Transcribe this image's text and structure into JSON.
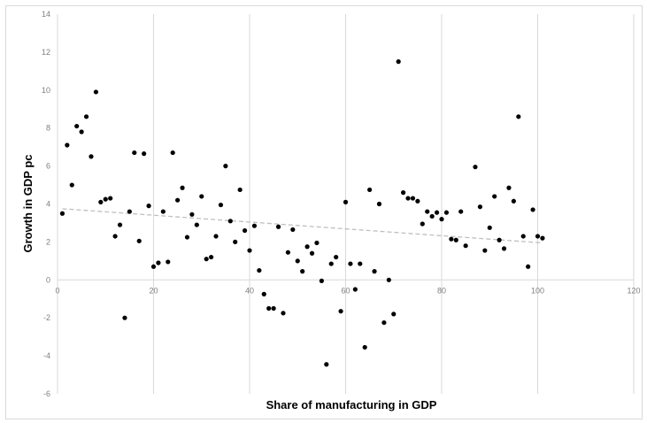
{
  "chart_data": {
    "type": "scatter",
    "title": "",
    "xlabel": "Share of manufacturing in GDP",
    "ylabel": "Growth in GDP pc",
    "xlim": [
      0,
      120
    ],
    "ylim": [
      -6,
      14
    ],
    "xticks": [
      0,
      20,
      40,
      60,
      80,
      100,
      120
    ],
    "yticks": [
      -6,
      -4,
      -2,
      0,
      2,
      4,
      6,
      8,
      10,
      12,
      14
    ],
    "grid": {
      "vertical": true,
      "horizontal": false
    },
    "trendline": {
      "type": "linear",
      "x": [
        1,
        101
      ],
      "y": [
        3.75,
        1.95
      ],
      "style": "dashed"
    },
    "series": [
      {
        "points": [
          [
            1,
            3.5
          ],
          [
            2,
            7.1
          ],
          [
            3,
            5.0
          ],
          [
            4,
            8.1
          ],
          [
            5,
            7.8
          ],
          [
            6,
            8.6
          ],
          [
            7,
            6.5
          ],
          [
            8,
            9.9
          ],
          [
            9,
            4.1
          ],
          [
            10,
            4.25
          ],
          [
            11,
            4.3
          ],
          [
            12,
            2.3
          ],
          [
            13,
            2.9
          ],
          [
            14,
            -2.0
          ],
          [
            15,
            3.6
          ],
          [
            16,
            6.7
          ],
          [
            17,
            2.05
          ],
          [
            18,
            6.65
          ],
          [
            19,
            3.9
          ],
          [
            20,
            0.7
          ],
          [
            21,
            0.9
          ],
          [
            22,
            3.6
          ],
          [
            23,
            0.95
          ],
          [
            24,
            6.7
          ],
          [
            25,
            4.2
          ],
          [
            26,
            4.85
          ],
          [
            27,
            2.25
          ],
          [
            28,
            3.45
          ],
          [
            29,
            2.9
          ],
          [
            30,
            4.4
          ],
          [
            31,
            1.1
          ],
          [
            32,
            1.2
          ],
          [
            33,
            2.3
          ],
          [
            34,
            3.95
          ],
          [
            35,
            6.0
          ],
          [
            36,
            3.1
          ],
          [
            37,
            2.0
          ],
          [
            38,
            4.75
          ],
          [
            39,
            2.6
          ],
          [
            40,
            1.55
          ],
          [
            41,
            2.85
          ],
          [
            42,
            0.5
          ],
          [
            43,
            -0.75
          ],
          [
            44,
            -1.5
          ],
          [
            45,
            -1.5
          ],
          [
            46,
            2.8
          ],
          [
            47,
            -1.75
          ],
          [
            48,
            1.45
          ],
          [
            49,
            2.65
          ],
          [
            50,
            1.0
          ],
          [
            51,
            0.45
          ],
          [
            52,
            1.75
          ],
          [
            53,
            1.4
          ],
          [
            54,
            1.95
          ],
          [
            55,
            -0.05
          ],
          [
            56,
            -4.45
          ],
          [
            57,
            0.85
          ],
          [
            58,
            1.2
          ],
          [
            59,
            -1.65
          ],
          [
            60,
            4.1
          ],
          [
            61,
            0.85
          ],
          [
            62,
            -0.5
          ],
          [
            63,
            0.85
          ],
          [
            64,
            -3.55
          ],
          [
            65,
            4.75
          ],
          [
            66,
            0.45
          ],
          [
            67,
            4.0
          ],
          [
            68,
            -2.25
          ],
          [
            69,
            0.0
          ],
          [
            70,
            -1.8
          ],
          [
            71,
            11.5
          ],
          [
            72,
            4.6
          ],
          [
            73,
            4.3
          ],
          [
            74,
            4.3
          ],
          [
            75,
            4.15
          ],
          [
            76,
            2.95
          ],
          [
            77,
            3.6
          ],
          [
            78,
            3.35
          ],
          [
            79,
            3.55
          ],
          [
            80,
            3.2
          ],
          [
            81,
            3.55
          ],
          [
            82,
            2.15
          ],
          [
            83,
            2.1
          ],
          [
            84,
            3.6
          ],
          [
            85,
            1.8
          ],
          [
            87,
            5.95
          ],
          [
            88,
            3.85
          ],
          [
            89,
            1.55
          ],
          [
            90,
            2.75
          ],
          [
            91,
            4.4
          ],
          [
            92,
            2.1
          ],
          [
            93,
            1.65
          ],
          [
            94,
            4.85
          ],
          [
            95,
            4.15
          ],
          [
            96,
            8.6
          ],
          [
            97,
            2.3
          ],
          [
            98,
            0.7
          ],
          [
            99,
            3.7
          ],
          [
            100,
            2.3
          ],
          [
            101,
            2.2
          ]
        ]
      }
    ]
  }
}
